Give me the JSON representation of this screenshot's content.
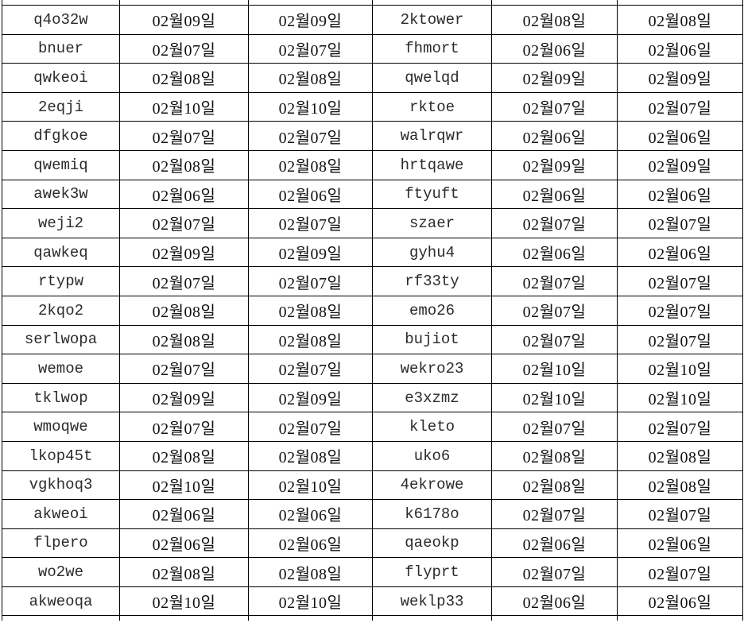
{
  "colors": {
    "border": "#000000",
    "id_text": "#2b2b2b",
    "date_text": "#111111",
    "background": "#ffffff"
  },
  "chart_data": {
    "type": "table",
    "title": "",
    "headers": [],
    "layout_hints": {
      "columns": 6,
      "grid": "on",
      "top_row_clipped": true,
      "bottom_row_clipped": true,
      "id_columns": [
        0,
        3
      ],
      "date_columns": [
        1,
        2,
        4,
        5
      ]
    },
    "rows": [
      [
        "q4o32w",
        "02월09일",
        "02월09일",
        "2ktower",
        "02월08일",
        "02월08일"
      ],
      [
        "bnuer",
        "02월07일",
        "02월07일",
        "fhmort",
        "02월06일",
        "02월06일"
      ],
      [
        "qwkeoi",
        "02월08일",
        "02월08일",
        "qwelqd",
        "02월09일",
        "02월09일"
      ],
      [
        "2eqji",
        "02월10일",
        "02월10일",
        "rktoe",
        "02월07일",
        "02월07일"
      ],
      [
        "dfgkoe",
        "02월07일",
        "02월07일",
        "walrqwr",
        "02월06일",
        "02월06일"
      ],
      [
        "qwemiq",
        "02월08일",
        "02월08일",
        "hrtqawe",
        "02월09일",
        "02월09일"
      ],
      [
        "awek3w",
        "02월06일",
        "02월06일",
        "ftyuft",
        "02월06일",
        "02월06일"
      ],
      [
        "weji2",
        "02월07일",
        "02월07일",
        "szaer",
        "02월07일",
        "02월07일"
      ],
      [
        "qawkeq",
        "02월09일",
        "02월09일",
        "gyhu4",
        "02월06일",
        "02월06일"
      ],
      [
        "rtypw",
        "02월07일",
        "02월07일",
        "rf33ty",
        "02월07일",
        "02월07일"
      ],
      [
        "2kqo2",
        "02월08일",
        "02월08일",
        "emo26",
        "02월07일",
        "02월07일"
      ],
      [
        "serlwopa",
        "02월08일",
        "02월08일",
        "bujiot",
        "02월07일",
        "02월07일"
      ],
      [
        "wemoe",
        "02월07일",
        "02월07일",
        "wekro23",
        "02월10일",
        "02월10일"
      ],
      [
        "tklwop",
        "02월09일",
        "02월09일",
        "e3xzmz",
        "02월10일",
        "02월10일"
      ],
      [
        "wmoqwe",
        "02월07일",
        "02월07일",
        "kleto",
        "02월07일",
        "02월07일"
      ],
      [
        "lkop45t",
        "02월08일",
        "02월08일",
        "uko6",
        "02월08일",
        "02월08일"
      ],
      [
        "vgkhoq3",
        "02월10일",
        "02월10일",
        "4ekrowe",
        "02월08일",
        "02월08일"
      ],
      [
        "akweoi",
        "02월06일",
        "02월06일",
        "k6178o",
        "02월07일",
        "02월07일"
      ],
      [
        "flpero",
        "02월06일",
        "02월06일",
        "qaeokp",
        "02월06일",
        "02월06일"
      ],
      [
        "wo2we",
        "02월08일",
        "02월08일",
        "flyprt",
        "02월07일",
        "02월07일"
      ],
      [
        "akweoqa",
        "02월10일",
        "02월10일",
        "weklp33",
        "02월06일",
        "02월06일"
      ]
    ]
  }
}
